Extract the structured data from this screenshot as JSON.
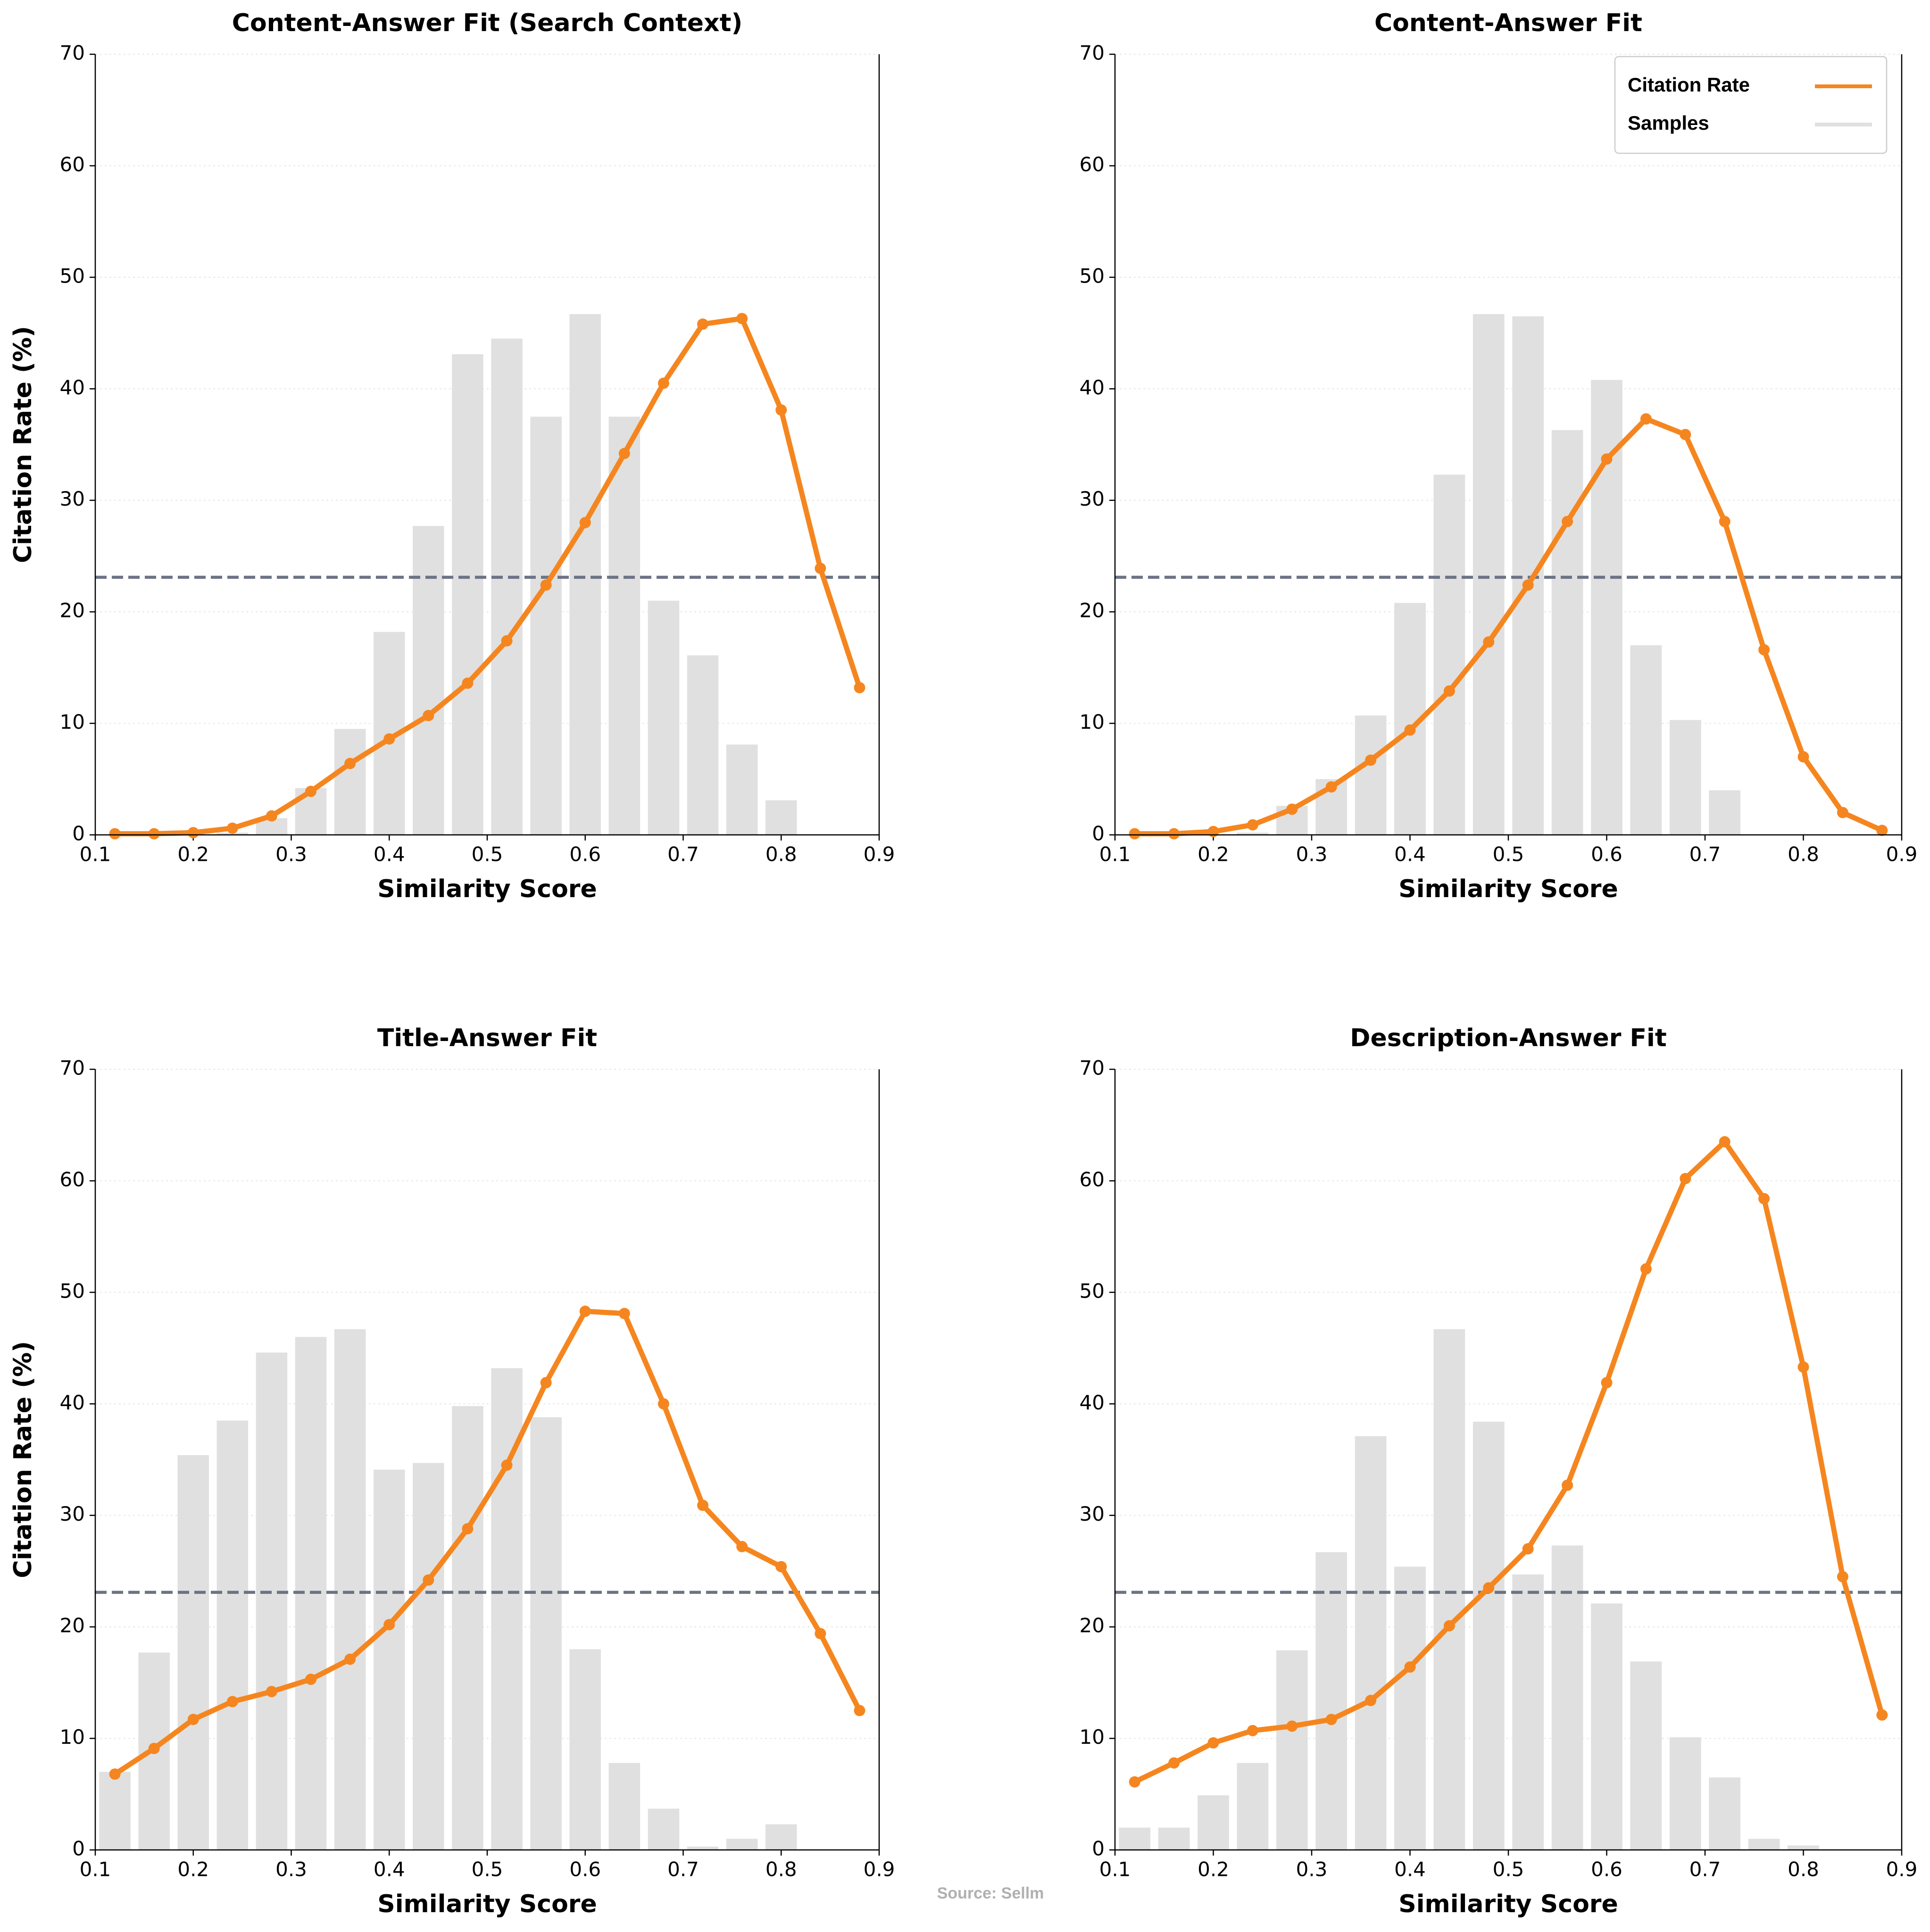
{
  "chart_data": [
    {
      "type": "combo",
      "title": "Content-Answer Fit (Search Context)",
      "x_label": "Similarity Score",
      "y_label": "Citation Rate (%)",
      "x": [
        0.12,
        0.16,
        0.2,
        0.24,
        0.28,
        0.32,
        0.36,
        0.4,
        0.44,
        0.48,
        0.52,
        0.56,
        0.6,
        0.64,
        0.68,
        0.72,
        0.76,
        0.8,
        0.84,
        0.88
      ],
      "series": [
        {
          "name": "Samples",
          "type": "bar",
          "color": "#e0e0e0",
          "values": [
            0,
            0,
            0,
            0.2,
            1.5,
            4.2,
            9.5,
            18.2,
            27.7,
            43.1,
            44.5,
            37.5,
            46.7,
            37.5,
            21.0,
            16.1,
            8.1,
            3.1,
            0,
            0
          ]
        },
        {
          "name": "Citation Rate",
          "type": "line",
          "color": "#f5861f",
          "values": [
            0.1,
            0.1,
            0.2,
            0.6,
            1.7,
            3.9,
            6.4,
            8.6,
            10.7,
            13.6,
            17.4,
            22.4,
            28.0,
            34.2,
            40.5,
            45.8,
            46.3,
            38.1,
            23.9,
            13.2
          ]
        }
      ],
      "hline": 23.1,
      "hline_color": "#6b7385",
      "xlim": [
        0.1,
        0.9
      ],
      "xticks": [
        0.1,
        0.2,
        0.3,
        0.4,
        0.5,
        0.6,
        0.7,
        0.8,
        0.9
      ],
      "ylim": [
        0,
        70
      ],
      "yticks": [
        0,
        10,
        20,
        30,
        40,
        50,
        60,
        70
      ],
      "grid": true
    },
    {
      "type": "combo",
      "title": "Content-Answer Fit",
      "x_label": "Similarity Score",
      "y_label": "Citation Rate (%)",
      "x": [
        0.12,
        0.16,
        0.2,
        0.24,
        0.28,
        0.32,
        0.36,
        0.4,
        0.44,
        0.48,
        0.52,
        0.56,
        0.6,
        0.64,
        0.68,
        0.72,
        0.76,
        0.8,
        0.84,
        0.88
      ],
      "series": [
        {
          "name": "Samples",
          "type": "bar",
          "color": "#e0e0e0",
          "values": [
            0,
            0,
            0,
            0.2,
            2.6,
            5.0,
            10.7,
            20.8,
            32.3,
            46.7,
            46.5,
            36.3,
            40.8,
            17.0,
            10.3,
            4.0,
            0,
            0,
            0,
            0
          ]
        },
        {
          "name": "Citation Rate",
          "type": "line",
          "color": "#f5861f",
          "values": [
            0.1,
            0.1,
            0.3,
            0.9,
            2.3,
            4.3,
            6.7,
            9.4,
            12.9,
            17.3,
            22.4,
            28.1,
            33.7,
            37.3,
            35.9,
            28.1,
            16.6,
            7.0,
            2.0,
            0.4
          ]
        }
      ],
      "hline": 23.1,
      "hline_color": "#6b7385",
      "xlim": [
        0.1,
        0.9
      ],
      "xticks": [
        0.1,
        0.2,
        0.3,
        0.4,
        0.5,
        0.6,
        0.7,
        0.8,
        0.9
      ],
      "ylim": [
        0,
        70
      ],
      "yticks": [
        0,
        10,
        20,
        30,
        40,
        50,
        60,
        70
      ],
      "grid": true,
      "legend": "upper right"
    },
    {
      "type": "combo",
      "title": "Title-Answer Fit",
      "x_label": "Similarity Score",
      "y_label": "Citation Rate (%)",
      "x": [
        0.12,
        0.16,
        0.2,
        0.24,
        0.28,
        0.32,
        0.36,
        0.4,
        0.44,
        0.48,
        0.52,
        0.56,
        0.6,
        0.64,
        0.68,
        0.72,
        0.76,
        0.8,
        0.84,
        0.88
      ],
      "series": [
        {
          "name": "Samples",
          "type": "bar",
          "color": "#e0e0e0",
          "values": [
            7.0,
            17.7,
            35.4,
            38.5,
            44.6,
            46.0,
            46.7,
            34.1,
            34.7,
            39.8,
            43.2,
            38.8,
            18.0,
            7.8,
            3.7,
            0.3,
            1.0,
            2.3,
            0,
            0
          ]
        },
        {
          "name": "Citation Rate",
          "type": "line",
          "color": "#f5861f",
          "values": [
            6.8,
            9.1,
            11.7,
            13.3,
            14.2,
            15.3,
            17.1,
            20.2,
            24.2,
            28.8,
            34.5,
            41.9,
            48.3,
            48.1,
            40.0,
            30.9,
            27.2,
            25.4,
            19.4,
            12.5
          ]
        }
      ],
      "hline": 23.1,
      "hline_color": "#6b7385",
      "xlim": [
        0.1,
        0.9
      ],
      "xticks": [
        0.1,
        0.2,
        0.3,
        0.4,
        0.5,
        0.6,
        0.7,
        0.8,
        0.9
      ],
      "ylim": [
        0,
        70
      ],
      "yticks": [
        0,
        10,
        20,
        30,
        40,
        50,
        60,
        70
      ],
      "grid": true
    },
    {
      "type": "combo",
      "title": "Description-Answer Fit",
      "x_label": "Similarity Score",
      "y_label": "Citation Rate (%)",
      "x": [
        0.12,
        0.16,
        0.2,
        0.24,
        0.28,
        0.32,
        0.36,
        0.4,
        0.44,
        0.48,
        0.52,
        0.56,
        0.6,
        0.64,
        0.68,
        0.72,
        0.76,
        0.8,
        0.84,
        0.88
      ],
      "series": [
        {
          "name": "Samples",
          "type": "bar",
          "color": "#e0e0e0",
          "values": [
            2.0,
            2.0,
            4.9,
            7.8,
            17.9,
            26.7,
            37.1,
            25.4,
            46.7,
            38.4,
            24.7,
            27.3,
            22.1,
            16.9,
            10.1,
            6.5,
            1.0,
            0.4,
            0,
            0
          ]
        },
        {
          "name": "Citation Rate",
          "type": "line",
          "color": "#f5861f",
          "values": [
            6.1,
            7.8,
            9.6,
            10.7,
            11.1,
            11.7,
            13.4,
            16.4,
            20.1,
            23.5,
            27.0,
            32.7,
            41.9,
            52.1,
            60.2,
            63.5,
            58.4,
            43.3,
            24.5,
            12.1
          ]
        }
      ],
      "hline": 23.1,
      "hline_color": "#6b7385",
      "xlim": [
        0.1,
        0.9
      ],
      "xticks": [
        0.1,
        0.2,
        0.3,
        0.4,
        0.5,
        0.6,
        0.7,
        0.8,
        0.9
      ],
      "ylim": [
        0,
        70
      ],
      "yticks": [
        0,
        10,
        20,
        30,
        40,
        50,
        60,
        70
      ],
      "grid": true
    }
  ],
  "source": "Source: Sellm"
}
